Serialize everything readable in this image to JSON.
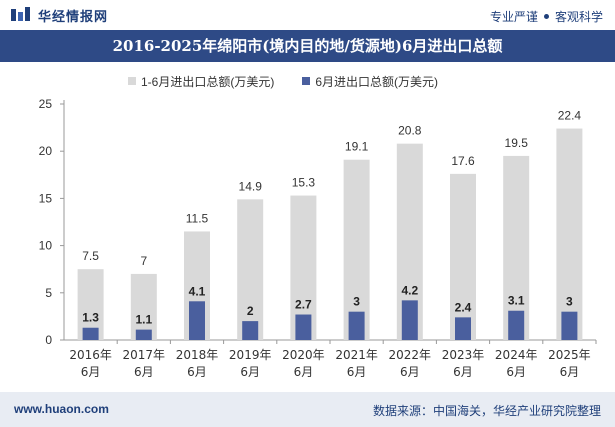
{
  "header": {
    "logo_text": "华经情报网",
    "tagline_left": "专业严谨",
    "tagline_right": "客观科学"
  },
  "footer": {
    "url": "www.huaon.com",
    "source": "数据来源：中国海关，华经产业研究院整理"
  },
  "colors": {
    "series1": "#d9d9d9",
    "series2": "#4a5f9e",
    "title_bg": "#2e4a86",
    "footer_bg": "#e8ecf3"
  },
  "chart_data": {
    "type": "bar",
    "title": "2016-2025年绵阳市(境内目的地/货源地)6月进出口总额",
    "categories": [
      [
        "2016年",
        "6月"
      ],
      [
        "2017年",
        "6月"
      ],
      [
        "2018年",
        "6月"
      ],
      [
        "2019年",
        "6月"
      ],
      [
        "2020年",
        "6月"
      ],
      [
        "2021年",
        "6月"
      ],
      [
        "2022年",
        "6月"
      ],
      [
        "2023年",
        "6月"
      ],
      [
        "2024年",
        "6月"
      ],
      [
        "2025年",
        "6月"
      ]
    ],
    "series": [
      {
        "name": "1-6月进出口总额(万美元)",
        "values": [
          7.5,
          7,
          11.5,
          14.9,
          15.3,
          19.1,
          20.8,
          17.6,
          19.5,
          22.4
        ]
      },
      {
        "name": "6月进出口总额(万美元)",
        "values": [
          1.3,
          1.1,
          4.1,
          2,
          2.7,
          3,
          4.2,
          2.4,
          3.1,
          3
        ]
      }
    ],
    "ylim": [
      0,
      25
    ],
    "yticks": [
      0,
      5,
      10,
      15,
      20,
      25
    ],
    "xlabel": "",
    "ylabel": "",
    "grid": false,
    "legend_position": "top"
  }
}
